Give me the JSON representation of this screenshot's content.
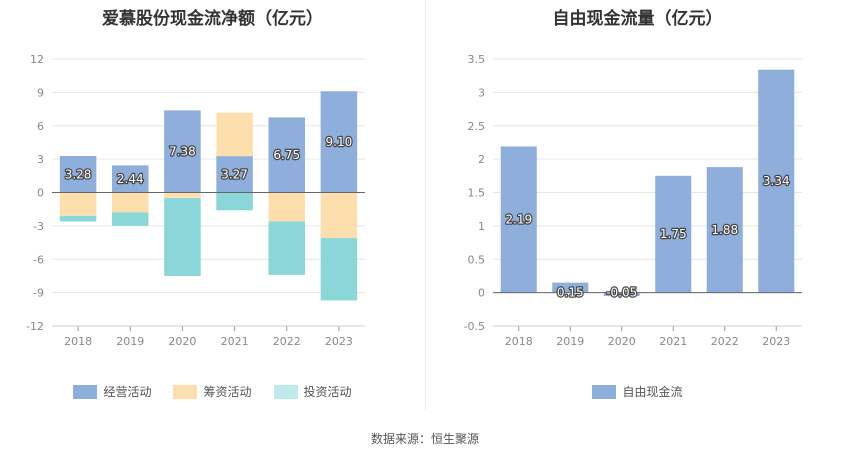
{
  "source": "数据来源：恒生聚源",
  "chart_data": [
    {
      "type": "bar",
      "stacked": true,
      "title": "爱慕股份现金流净额（亿元）",
      "categories": [
        "2018",
        "2019",
        "2020",
        "2021",
        "2022",
        "2023"
      ],
      "ylim": [
        -12,
        12
      ],
      "yticks": [
        12,
        9,
        6,
        3,
        0,
        -3,
        -6,
        -9,
        -12
      ],
      "legend_position": "bottom",
      "series": [
        {
          "name": "经营活动",
          "color": "#8eaedc",
          "values": [
            3.28,
            2.44,
            7.38,
            3.27,
            6.75,
            9.1
          ],
          "labels": [
            "3.28",
            "2.44",
            "7.38",
            "3.27",
            "6.75",
            "9.10"
          ]
        },
        {
          "name": "筹资活动",
          "color": "#fddfae",
          "values": [
            -2.1,
            -1.8,
            -0.5,
            3.9,
            -2.6,
            -4.1
          ]
        },
        {
          "name": "投资活动",
          "color": "#8ad6d8",
          "values": [
            -0.5,
            -1.2,
            -7.0,
            -1.6,
            -4.8,
            -5.6
          ]
        }
      ]
    },
    {
      "type": "bar",
      "title": "自由现金流量（亿元）",
      "categories": [
        "2018",
        "2019",
        "2020",
        "2021",
        "2022",
        "2023"
      ],
      "ylim": [
        -0.5,
        3.5
      ],
      "yticks": [
        3.5,
        3,
        2.5,
        2,
        1.5,
        1,
        0.5,
        0,
        -0.5
      ],
      "legend_position": "bottom",
      "series": [
        {
          "name": "自由现金流",
          "color": "#8eaedc",
          "values": [
            2.19,
            0.15,
            -0.05,
            1.75,
            1.88,
            3.34
          ],
          "labels": [
            "2.19",
            "0.15",
            "-0.05",
            "1.75",
            "1.88",
            "3.34"
          ]
        }
      ]
    }
  ]
}
